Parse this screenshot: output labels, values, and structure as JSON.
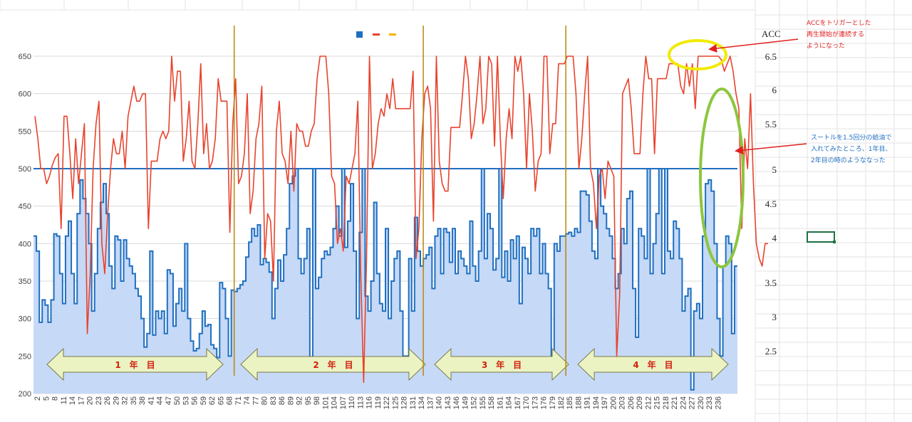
{
  "chart_data": {
    "type": "line",
    "x_tick_labels": [
      "2",
      "5",
      "8",
      "11",
      "14",
      "17",
      "20",
      "23",
      "26",
      "29",
      "32",
      "35",
      "38",
      "41",
      "44",
      "47",
      "50",
      "53",
      "56",
      "59",
      "62",
      "65",
      "68",
      "71",
      "74",
      "77",
      "80",
      "83",
      "86",
      "89",
      "92",
      "95",
      "98",
      "101",
      "104",
      "107",
      "110",
      "113",
      "116",
      "119",
      "122",
      "125",
      "128",
      "131",
      "134",
      "137",
      "140",
      "143",
      "146",
      "149",
      "152",
      "155",
      "158",
      "161",
      "164",
      "167",
      "170",
      "173",
      "176",
      "179",
      "182",
      "185",
      "188",
      "191",
      "194",
      "197",
      "200",
      "203",
      "206",
      "209",
      "212",
      "215",
      "218",
      "221",
      "224",
      "227",
      "230",
      "233",
      "236"
    ],
    "ylim": [
      200,
      650
    ],
    "y_ticks": [
      "200",
      "250",
      "300",
      "350",
      "400",
      "450",
      "500",
      "550",
      "600",
      "650"
    ],
    "acc_axis": {
      "label": "ACC",
      "ticks": [
        "6.5",
        "6",
        "5.5",
        "5",
        "4.5",
        "4",
        "3.5",
        "3",
        "2.5"
      ]
    },
    "reference_line": 500,
    "year_dividers": [
      69,
      134,
      183
    ],
    "year_labels": [
      "1　年　目",
      "2　年　目",
      "3　年　目",
      "4　年　目"
    ],
    "series": [
      {
        "color": "#1f6fc0",
        "fill": "#c6d9f7",
        "values": [
          410,
          390,
          295,
          325,
          318,
          295,
          325,
          413,
          410,
          360,
          320,
          410,
          430,
          360,
          320,
          440,
          485,
          460,
          440,
          400,
          310,
          360,
          420,
          455,
          480,
          440,
          370,
          340,
          410,
          405,
          350,
          405,
          380,
          370,
          360,
          340,
          330,
          300,
          262,
          280,
          390,
          278,
          310,
          300,
          310,
          280,
          365,
          360,
          290,
          320,
          340,
          310,
          400,
          300,
          270,
          257,
          260,
          280,
          310,
          290,
          292,
          265,
          260,
          248,
          348,
          340,
          300,
          250,
          338,
          336,
          340,
          345,
          350,
          382,
          402,
          420,
          410,
          425,
          372,
          380,
          375,
          362,
          300,
          340,
          378,
          350,
          385,
          420,
          480,
          490,
          500,
          380,
          360,
          380,
          420,
          245,
          500,
          340,
          355,
          380,
          390,
          385,
          395,
          420,
          450,
          410,
          500,
          395,
          430,
          480,
          390,
          300,
          415,
          500,
          330,
          310,
          350,
          455,
          360,
          320,
          310,
          420,
          300,
          350,
          380,
          390,
          310,
          250,
          250,
          380,
          310,
          435,
          390,
          370,
          380,
          385,
          395,
          340,
          410,
          420,
          360,
          420,
          415,
          375,
          420,
          360,
          390,
          380,
          370,
          360,
          430,
          370,
          350,
          390,
          500,
          380,
          440,
          420,
          365,
          380,
          500,
          355,
          390,
          350,
          405,
          380,
          410,
          320,
          395,
          380,
          360,
          420,
          410,
          420,
          360,
          400,
          360,
          340,
          250,
          400,
          390,
          410,
          410,
          413,
          415,
          410,
          420,
          415,
          470,
          470,
          465,
          430,
          390,
          380,
          500,
          450,
          440,
          420,
          410,
          380,
          340,
          360,
          420,
          400,
          460,
          470,
          340,
          275,
          420,
          410,
          380,
          500,
          360,
          400,
          440,
          500,
          360,
          500,
          390,
          380,
          430,
          420,
          380,
          310,
          330,
          340,
          205,
          310,
          320,
          300,
          410,
          480,
          485,
          470,
          400,
          300,
          250,
          370,
          410,
          400,
          280,
          370
        ]
      },
      {
        "color": "#e8432d",
        "values": [
          570,
          540,
          500,
          500,
          480,
          490,
          505,
          515,
          520,
          420,
          570,
          570,
          520,
          460,
          540,
          480,
          520,
          560,
          280,
          360,
          500,
          560,
          590,
          400,
          360,
          440,
          500,
          540,
          520,
          520,
          550,
          500,
          570,
          590,
          610,
          590,
          590,
          600,
          600,
          420,
          510,
          510,
          510,
          540,
          550,
          540,
          550,
          650,
          590,
          630,
          630,
          510,
          540,
          590,
          510,
          500,
          560,
          640,
          520,
          560,
          500,
          510,
          540,
          620,
          590,
          590,
          590,
          415,
          560,
          620,
          480,
          490,
          520,
          600,
          440,
          470,
          540,
          560,
          610,
          380,
          440,
          430,
          350,
          550,
          590,
          520,
          510,
          480,
          550,
          470,
          560,
          550,
          550,
          530,
          530,
          550,
          560,
          620,
          650,
          650,
          650,
          600,
          490,
          480,
          400,
          420,
          390,
          490,
          480,
          500,
          520,
          590,
          360,
          215,
          380,
          650,
          500,
          520,
          560,
          580,
          570,
          600,
          580,
          620,
          580,
          580,
          580,
          580,
          580,
          580,
          630,
          380,
          420,
          540,
          600,
          610,
          580,
          430,
          650,
          510,
          480,
          470,
          470,
          555,
          555,
          555,
          555,
          600,
          650,
          620,
          540,
          560,
          600,
          650,
          560,
          580,
          650,
          640,
          530,
          650,
          540,
          460,
          540,
          580,
          540,
          650,
          630,
          650,
          600,
          500,
          600,
          550,
          470,
          510,
          520,
          650,
          650,
          520,
          560,
          560,
          640,
          640,
          640,
          650,
          650,
          660,
          600,
          500,
          540,
          600,
          650,
          500,
          480,
          420,
          490,
          500,
          460,
          510,
          500,
          490,
          250,
          330,
          600,
          610,
          620,
          580,
          520,
          520,
          520,
          600,
          650,
          620,
          620,
          520,
          620,
          620,
          620,
          620,
          640,
          640,
          640,
          640,
          610,
          600,
          640,
          610,
          640,
          580,
          650,
          650,
          650,
          650,
          650,
          650,
          650,
          650,
          645,
          630,
          640,
          650,
          630,
          600,
          580,
          420,
          540,
          500,
          600,
          480,
          400,
          380,
          370,
          400,
          400
        ]
      }
    ]
  }
}
